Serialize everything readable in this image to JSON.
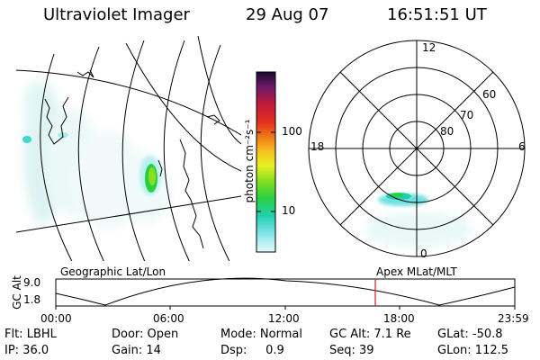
{
  "header": {
    "instrument": "Ultraviolet Imager",
    "date": "29 Aug 07",
    "time": "16:51:51 UT"
  },
  "colorbar": {
    "unit_label": "photon cm⁻²s⁻¹",
    "ticks": [
      "100",
      "10"
    ],
    "colors": [
      "#1a0a2e",
      "#6a1a6a",
      "#c21a3a",
      "#e53020",
      "#f07818",
      "#f8c020",
      "#e8f020",
      "#8ae020",
      "#28d040",
      "#20d0b0",
      "#70e0e0",
      "#b8f0f0",
      "#e0f8f8"
    ]
  },
  "panels": {
    "left_caption": "Geographic Lat/Lon",
    "right_caption": "Apex  MLat/MLT",
    "polar_labels": {
      "mlt_top": "12",
      "mlt_bottom": "0",
      "mlt_left": "18",
      "mlt_right": "6",
      "lat_60": "60",
      "lat_70": "70",
      "lat_80": "80"
    }
  },
  "timeline": {
    "axis_label": "GC Alt",
    "y_top": "9.0",
    "y_bottom": "1.8",
    "x_ticks": [
      "00:00",
      "06:00",
      "12:00",
      "18:00",
      "23:59"
    ],
    "current_marker_color": "#d02020"
  },
  "params": {
    "flt": "Flt: LBHL",
    "door": "Door: Open",
    "mode": "Mode: Normal",
    "gc_alt": "GC Alt: 7.1 Re",
    "glat": "GLat: -50.8",
    "ip": "IP: 36.0",
    "gain": "Gain: 14",
    "dsp": "Dsp:     0.9",
    "seq": "Seq: 39",
    "glon": "GLon: 112.5"
  }
}
